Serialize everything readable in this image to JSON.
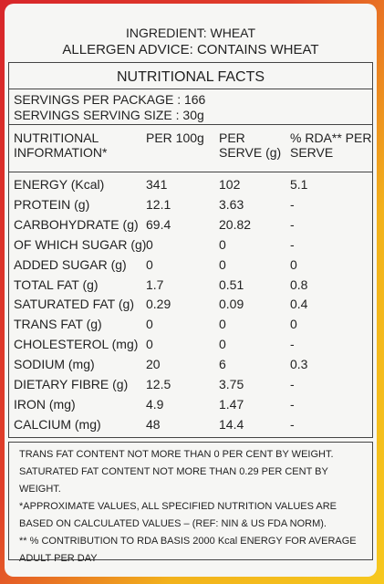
{
  "header": {
    "ingredient": "INGREDIENT: WHEAT",
    "allergen": "ALLERGEN ADVICE: CONTAINS WHEAT"
  },
  "facts": {
    "title": "NUTRITIONAL FACTS",
    "servings_per_package": "SERVINGS PER PACKAGE : 166",
    "serving_size": "SERVINGS SERVING SIZE : 30g"
  },
  "table": {
    "columns": [
      "NUTRITIONAL INFORMATION*",
      "PER 100g",
      "PER SERVE (g)",
      "% RDA** PER SERVE"
    ],
    "rows": [
      [
        "ENERGY (Kcal)",
        "341",
        "102",
        "5.1"
      ],
      [
        "PROTEIN (g)",
        "12.1",
        "3.63",
        "-"
      ],
      [
        "CARBOHYDRATE (g)",
        "69.4",
        "20.82",
        "-"
      ],
      [
        "OF WHICH SUGAR (g)",
        "0",
        "0",
        "-"
      ],
      [
        "ADDED SUGAR (g)",
        "0",
        "0",
        "0"
      ],
      [
        "TOTAL FAT (g)",
        "1.7",
        "0.51",
        "0.8"
      ],
      [
        "SATURATED FAT (g)",
        "0.29",
        "0.09",
        "0.4"
      ],
      [
        "TRANS FAT (g)",
        "0",
        "0",
        "0"
      ],
      [
        "CHOLESTEROL (mg)",
        "0",
        "0",
        "-"
      ],
      [
        "SODIUM (mg)",
        "20",
        "6",
        "0.3"
      ],
      [
        "DIETARY FIBRE (g)",
        "12.5",
        "3.75",
        "-"
      ],
      [
        "IRON (mg)",
        "4.9",
        "1.47",
        "-"
      ],
      [
        "CALCIUM (mg)",
        "48",
        "14.4",
        "-"
      ]
    ]
  },
  "notes": [
    "TRANS FAT CONTENT NOT MORE THAN 0 PER CENT BY WEIGHT.",
    "SATURATED FAT CONTENT NOT MORE THAN 0.29 PER CENT BY WEIGHT.",
    "*APPROXIMATE VALUES, ALL SPECIFIED NUTRITION VALUES ARE BASED ON CALCULATED VALUES – (REF: NIN & US FDA NORM).",
    "** % CONTRIBUTION TO RDA BASIS 2000 Kcal ENERGY FOR AVERAGE ADULT PER DAY"
  ]
}
